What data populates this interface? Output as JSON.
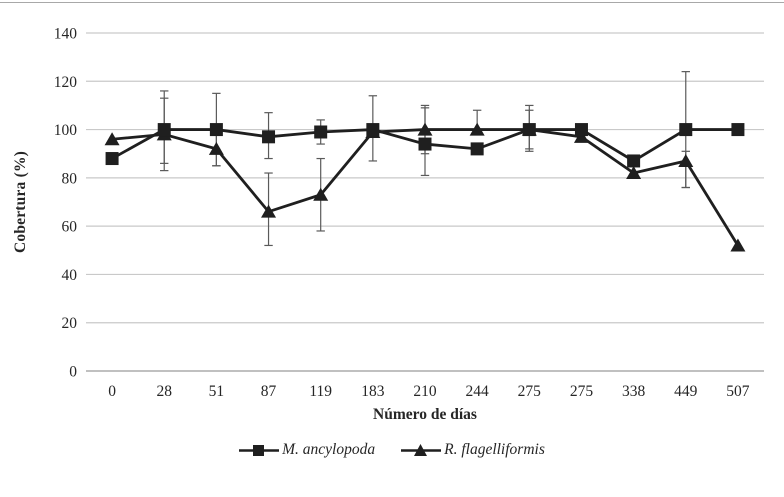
{
  "chart_data": {
    "type": "line",
    "title": "",
    "xlabel": "Número de días",
    "ylabel": "Cobertura (%)",
    "categories": [
      "0",
      "28",
      "51",
      "87",
      "119",
      "183",
      "210",
      "244",
      "275",
      "275",
      "338",
      "449",
      "507"
    ],
    "yticks": [
      0,
      20,
      40,
      60,
      80,
      100,
      120,
      140
    ],
    "ylim": [
      0,
      140
    ],
    "grid": true,
    "legend_position": "bottom",
    "colors": {
      "series": "#1f1f1f",
      "gridline": "#c9c9c9",
      "axis_line": "#9b9b9b",
      "error_bar": "#5a5a5a",
      "text": "#262626",
      "background": "#ffffff"
    },
    "series": [
      {
        "name": "M. ancylopoda",
        "marker": "square",
        "values": [
          88,
          100,
          100,
          97,
          99,
          100,
          94,
          92,
          100,
          100,
          87,
          100,
          100
        ],
        "err_minus": [
          0,
          17,
          15,
          9,
          5,
          13,
          13,
          0,
          9,
          0,
          0,
          24,
          0
        ],
        "err_plus": [
          0,
          16,
          15,
          10,
          5,
          14,
          15,
          0,
          10,
          0,
          0,
          24,
          0
        ]
      },
      {
        "name": "R. flagelliformis",
        "marker": "triangle",
        "values": [
          96,
          98,
          92,
          66,
          73,
          99,
          100,
          100,
          100,
          97,
          82,
          87,
          52
        ],
        "err_minus": [
          0,
          12,
          7,
          14,
          15,
          0,
          10,
          0,
          8,
          0,
          0,
          11,
          0
        ],
        "err_plus": [
          0,
          15,
          8,
          16,
          15,
          0,
          10,
          8,
          8,
          0,
          0,
          4,
          0
        ]
      }
    ]
  }
}
